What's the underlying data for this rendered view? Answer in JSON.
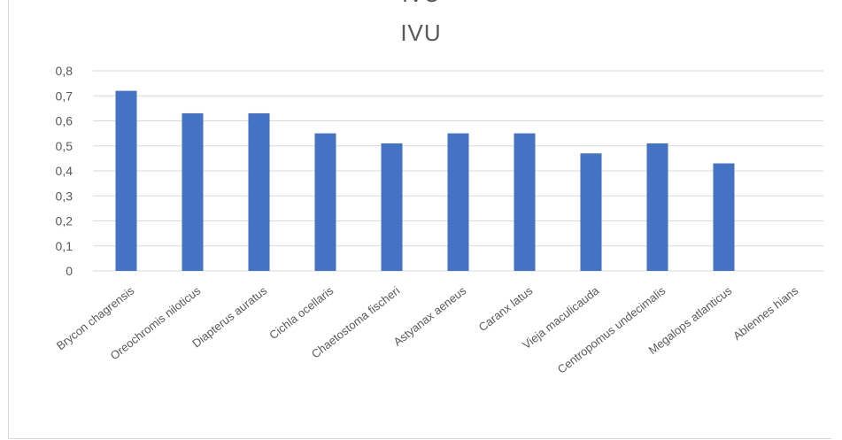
{
  "chart_data": {
    "type": "bar",
    "title": "IVU",
    "partial_title": "IVU",
    "categories": [
      "Brycon chagrensis",
      "Oreochromis niloticus",
      "Diapterus auratus",
      "Cichla ocellaris",
      "Chaetostoma fischeri",
      "Astyanax aeneus",
      "Caranx latus",
      "Vieja maculicauda",
      "Centropomus undecimalis",
      "Megalops atlanticus",
      "Ablennes hians"
    ],
    "values": [
      0.72,
      0.63,
      0.63,
      0.55,
      0.51,
      0.55,
      0.55,
      0.47,
      0.51,
      0.43,
      0
    ],
    "ylim": [
      0,
      0.8
    ],
    "yticks": [
      "0",
      "0,1",
      "0,2",
      "0,3",
      "0,4",
      "0,5",
      "0,6",
      "0,7",
      "0,8"
    ],
    "xlabel": "",
    "ylabel": "",
    "grid": true,
    "legend": "none",
    "bar_color": "#4472c4",
    "grid_color": "#d9d9d9"
  }
}
